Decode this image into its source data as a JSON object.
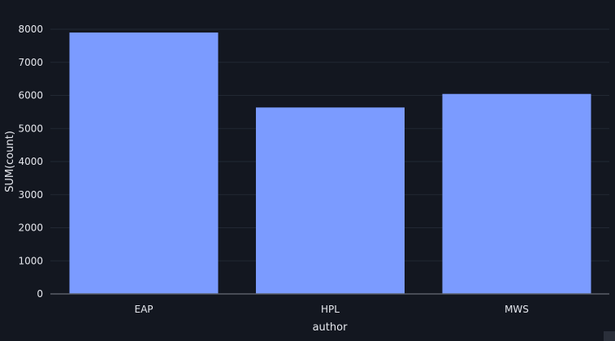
{
  "chart_data": {
    "type": "bar",
    "categories": [
      "EAP",
      "HPL",
      "MWS"
    ],
    "values": [
      7900,
      5635,
      6044
    ],
    "title": "",
    "xlabel": "author",
    "ylabel": "SUM(count)",
    "ylim": [
      0,
      8000
    ],
    "yticks": [
      0,
      1000,
      2000,
      3000,
      4000,
      5000,
      6000,
      7000,
      8000
    ],
    "grid": true,
    "legend": "none",
    "bar_color": "#7b9bff",
    "background_color": "#131720"
  }
}
